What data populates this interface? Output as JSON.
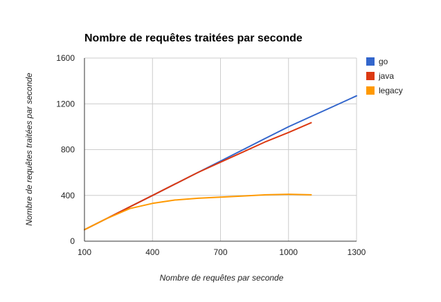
{
  "chart_data": {
    "type": "line",
    "title": "Nombre de requêtes traitées par seconde",
    "xlabel": "Nombre de requêtes par seconde",
    "ylabel": "Nombre de requêtes traitées par seconde",
    "xlim": [
      100,
      1300
    ],
    "ylim": [
      0,
      1600
    ],
    "xticks": [
      100,
      400,
      700,
      1000,
      1300
    ],
    "yticks": [
      0,
      400,
      800,
      1200,
      1600
    ],
    "grid": true,
    "legend": "right",
    "series": [
      {
        "name": "go",
        "color": "#3366cc",
        "x": [
          100,
          200,
          300,
          400,
          500,
          600,
          700,
          800,
          900,
          1000,
          1100,
          1200,
          1300
        ],
        "y": [
          100,
          200,
          300,
          400,
          500,
          600,
          700,
          800,
          900,
          1000,
          1090,
          1180,
          1270
        ]
      },
      {
        "name": "java",
        "color": "#dc3912",
        "x": [
          100,
          200,
          300,
          400,
          500,
          600,
          700,
          800,
          900,
          1000,
          1100
        ],
        "y": [
          100,
          200,
          300,
          400,
          500,
          600,
          690,
          780,
          870,
          950,
          1035
        ]
      },
      {
        "name": "legacy",
        "color": "#ff9900",
        "x": [
          100,
          200,
          300,
          400,
          500,
          600,
          700,
          800,
          900,
          1000,
          1100
        ],
        "y": [
          100,
          200,
          285,
          330,
          360,
          375,
          385,
          395,
          405,
          410,
          405
        ]
      }
    ]
  }
}
